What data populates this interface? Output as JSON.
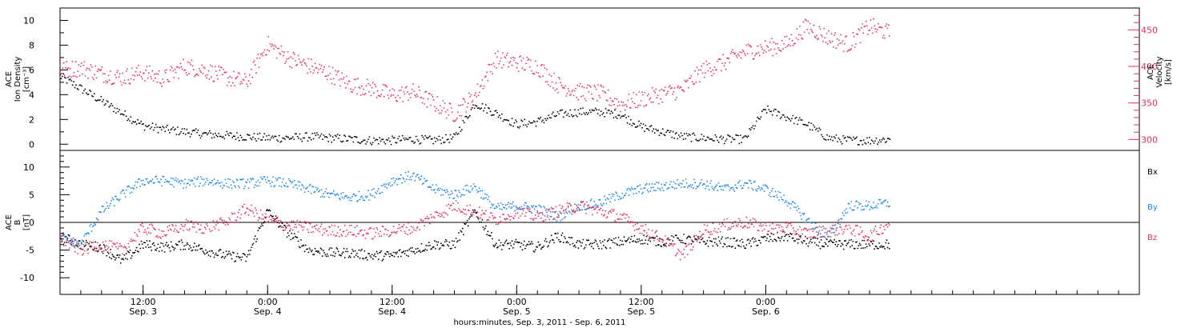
{
  "chart_data": [
    {
      "type": "scatter",
      "panel": "top",
      "ylabel_left": [
        "ACE",
        "Ion Density",
        "[cm⁻³]"
      ],
      "ylabel_right": [
        "ACE",
        "Velocity",
        "[km/s]"
      ],
      "yticks_left": [
        "0",
        "2",
        "4",
        "6",
        "8",
        "10"
      ],
      "ylim_left": [
        -0.5,
        11
      ],
      "yticks_right": [
        "300",
        "350",
        "400",
        "450"
      ],
      "ylim_right": [
        285,
        480
      ],
      "series": [
        {
          "name": "",
          "axis": "left",
          "color": "#000000",
          "x_hours": [
            0,
            2,
            4,
            6,
            8,
            10,
            12,
            14,
            16,
            18,
            20,
            22,
            24,
            26,
            28,
            30,
            32,
            34,
            36,
            38,
            40,
            42,
            44,
            46,
            48,
            50,
            52,
            54,
            56,
            58,
            60,
            62,
            64,
            66,
            68,
            70,
            72,
            74,
            76,
            78,
            80
          ],
          "y": [
            5.5,
            4.5,
            3.5,
            2.5,
            1.5,
            1.2,
            1.0,
            0.8,
            0.7,
            0.6,
            0.5,
            0.5,
            0.6,
            0.5,
            0.4,
            0.3,
            0.3,
            0.4,
            0.3,
            0.5,
            3.3,
            2.5,
            1.6,
            1.8,
            2.4,
            2.6,
            2.6,
            2.4,
            1.4,
            1.0,
            0.6,
            0.5,
            0.4,
            0.4,
            2.8,
            2.2,
            1.6,
            0.5,
            0.3,
            0.3,
            0.4
          ]
        },
        {
          "name": "",
          "axis": "right",
          "color": "#e8305a",
          "x_hours": [
            0,
            2,
            4,
            6,
            8,
            10,
            12,
            14,
            16,
            18,
            20,
            22,
            24,
            26,
            28,
            30,
            32,
            34,
            36,
            38,
            40,
            42,
            44,
            46,
            48,
            50,
            52,
            54,
            56,
            58,
            60,
            62,
            64,
            66,
            68,
            70,
            72,
            74,
            76,
            78,
            80
          ],
          "y": [
            395,
            398,
            390,
            385,
            392,
            383,
            400,
            395,
            385,
            378,
            430,
            412,
            400,
            390,
            375,
            370,
            360,
            365,
            350,
            335,
            360,
            410,
            405,
            400,
            375,
            365,
            363,
            348,
            355,
            362,
            368,
            395,
            405,
            420,
            425,
            430,
            455,
            440,
            430,
            455,
            445
          ]
        }
      ]
    },
    {
      "type": "scatter",
      "panel": "bottom",
      "ylabel_left": [
        "ACE",
        "B",
        "[nT]"
      ],
      "yticks_left": [
        "-10",
        "-5",
        "0",
        "5",
        "10"
      ],
      "ylim_left": [
        -13,
        13
      ],
      "reference_line_y": 0,
      "xlabel": "hours:minutes, Sep. 3, 2011 - Sep. 6, 2011",
      "xtick_times": [
        "12:00",
        "0:00",
        "12:00",
        "0:00",
        "12:00",
        "0:00"
      ],
      "xtick_dates": [
        "Sep. 3",
        "Sep. 4",
        "Sep. 4",
        "Sep. 5",
        "Sep. 5",
        "Sep. 6"
      ],
      "series": [
        {
          "name": "Bx",
          "color": "#000000",
          "x_hours": [
            0,
            2,
            4,
            6,
            8,
            10,
            12,
            14,
            16,
            18,
            20,
            22,
            24,
            26,
            28,
            30,
            32,
            34,
            36,
            38,
            40,
            42,
            44,
            46,
            48,
            50,
            52,
            54,
            56,
            58,
            60,
            62,
            64,
            66,
            68,
            70,
            72,
            74,
            76,
            78,
            80
          ],
          "y": [
            -2.5,
            -4.0,
            -4.5,
            -7.0,
            -4.0,
            -4.5,
            -4.0,
            -5.0,
            -6.0,
            -6.5,
            2.0,
            -2.0,
            -5.0,
            -5.5,
            -5.5,
            -6.0,
            -6.0,
            -5.0,
            -4.0,
            -4.0,
            2.0,
            -4.0,
            -4.0,
            -4.5,
            -2.5,
            -4.0,
            -4.0,
            -3.5,
            -3.0,
            -3.5,
            -3.0,
            -3.5,
            -3.5,
            -4.0,
            -3.0,
            -2.5,
            -3.5,
            -4.0,
            -4.0,
            -4.0,
            -4.0
          ]
        },
        {
          "name": "By",
          "color": "#1e88e5",
          "x_hours": [
            0,
            2,
            4,
            6,
            8,
            10,
            12,
            14,
            16,
            18,
            20,
            22,
            24,
            26,
            28,
            30,
            32,
            34,
            36,
            38,
            40,
            42,
            44,
            46,
            48,
            50,
            52,
            54,
            56,
            58,
            60,
            62,
            64,
            66,
            68,
            70,
            72,
            74,
            76,
            78,
            80
          ],
          "y": [
            -3.0,
            -4.0,
            2.0,
            5.0,
            7.5,
            7.5,
            7.0,
            7.5,
            7.0,
            7.0,
            7.5,
            7.0,
            6.0,
            5.0,
            4.5,
            5.0,
            7.5,
            8.5,
            6.0,
            5.0,
            6.5,
            2.5,
            3.0,
            2.5,
            1.0,
            3.0,
            3.5,
            5.0,
            6.0,
            6.5,
            7.0,
            7.0,
            6.0,
            7.0,
            6.0,
            4.0,
            0.5,
            -3.0,
            3.0,
            3.0,
            3.5
          ]
        },
        {
          "name": "Bz",
          "color": "#e8305a",
          "x_hours": [
            0,
            2,
            4,
            6,
            8,
            10,
            12,
            14,
            16,
            18,
            20,
            22,
            24,
            26,
            28,
            30,
            32,
            34,
            36,
            38,
            40,
            42,
            44,
            46,
            48,
            50,
            52,
            54,
            56,
            58,
            60,
            62,
            64,
            66,
            68,
            70,
            72,
            74,
            76,
            78,
            80
          ],
          "y": [
            -3.0,
            -5.0,
            -4.0,
            -5.0,
            -1.0,
            -2.0,
            -0.5,
            -1.0,
            0.0,
            2.5,
            0.5,
            -0.5,
            -1.0,
            -1.5,
            -1.5,
            -2.0,
            -1.5,
            -1.0,
            1.0,
            3.0,
            2.0,
            0.5,
            2.0,
            1.0,
            2.0,
            3.0,
            2.0,
            1.0,
            -1.0,
            -3.0,
            -6.0,
            -1.5,
            -0.5,
            0.0,
            -1.0,
            -1.0,
            -2.0,
            -1.5,
            -1.0,
            -2.5,
            0.0
          ]
        }
      ],
      "legend": [
        "Bx",
        "By",
        "Bz"
      ],
      "legend_placement": "right"
    }
  ]
}
